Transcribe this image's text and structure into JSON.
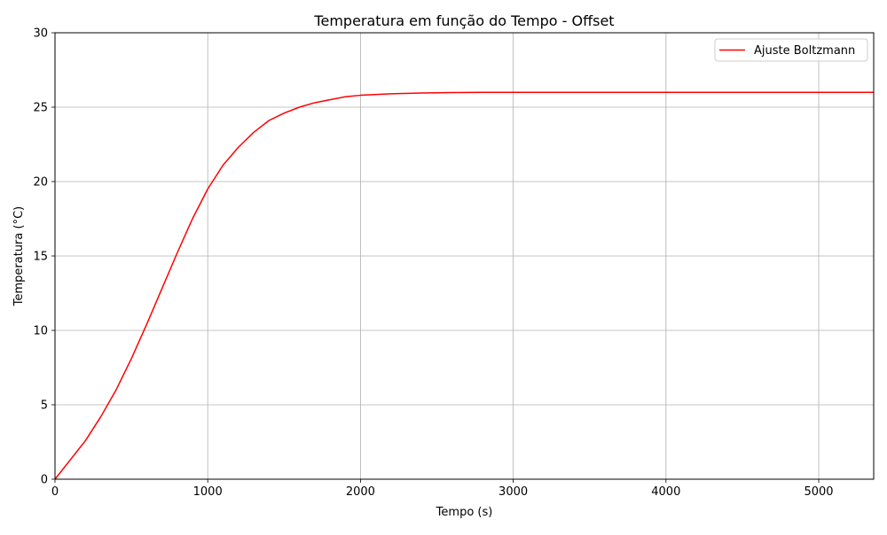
{
  "chart_data": {
    "type": "line",
    "title": "Temperatura em função do Tempo - Offset",
    "xlabel": "Tempo (s)",
    "ylabel": "Temperatura (°C)",
    "xlim": [
      0,
      5360
    ],
    "ylim": [
      0,
      30
    ],
    "x_ticks": [
      "0",
      "1000",
      "2000",
      "3000",
      "4000",
      "5000"
    ],
    "y_ticks": [
      "0",
      "5",
      "10",
      "15",
      "20",
      "25",
      "30"
    ],
    "grid": true,
    "legend_position": "top-right",
    "series": [
      {
        "name": "Ajuste Boltzmann",
        "color": "#ff0000",
        "x": [
          0,
          100,
          200,
          300,
          400,
          500,
          600,
          700,
          800,
          900,
          1000,
          1100,
          1200,
          1300,
          1400,
          1500,
          1600,
          1700,
          1800,
          1900,
          2000,
          2200,
          2400,
          2600,
          2800,
          3000,
          3500,
          4000,
          4500,
          5000,
          5360
        ],
        "y": [
          0,
          1.3,
          2.6,
          4.2,
          6.0,
          8.1,
          10.4,
          12.8,
          15.2,
          17.5,
          19.5,
          21.1,
          22.3,
          23.3,
          24.1,
          24.6,
          25.0,
          25.3,
          25.5,
          25.7,
          25.8,
          25.9,
          25.95,
          25.98,
          26.0,
          26.0,
          26.0,
          26.0,
          26.0,
          26.0,
          26.0
        ]
      }
    ]
  }
}
